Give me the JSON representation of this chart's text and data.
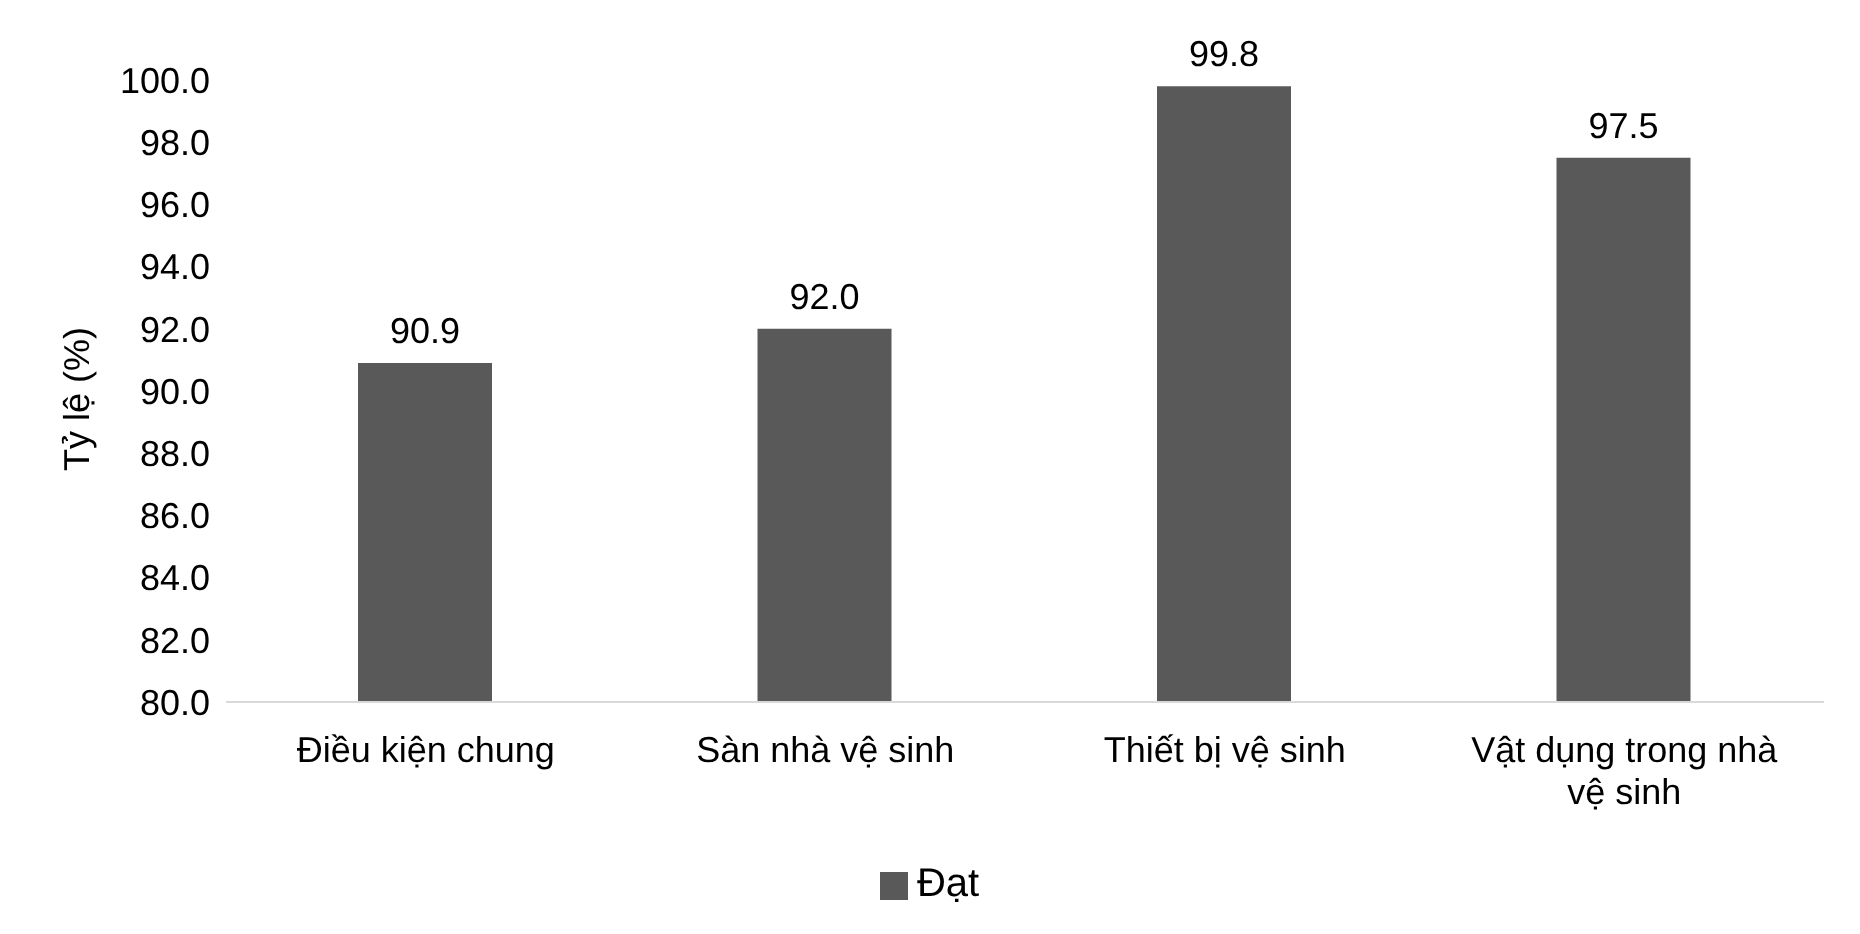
{
  "chart_data": {
    "type": "bar",
    "ylabel": "Tỷ lệ (%)",
    "categories": [
      "Điều kiện chung",
      "Sàn nhà vệ sinh",
      "Thiết bị vệ sinh",
      "Vật dụng trong nhà vệ sinh"
    ],
    "series": [
      {
        "name": "Đạt",
        "color": "#595959",
        "values": [
          90.9,
          92.0,
          99.8,
          97.5
        ],
        "value_labels": [
          "90.9",
          "92.0",
          "99.8",
          "97.5"
        ]
      }
    ],
    "ylim": [
      80,
      100
    ],
    "yticks": [
      {
        "value": 80,
        "label": "80.0"
      },
      {
        "value": 82,
        "label": "82.0"
      },
      {
        "value": 84,
        "label": "84.0"
      },
      {
        "value": 86,
        "label": "86.0"
      },
      {
        "value": 88,
        "label": "88.0"
      },
      {
        "value": 90,
        "label": "90.0"
      },
      {
        "value": 92,
        "label": "92.0"
      },
      {
        "value": 94,
        "label": "94.0"
      },
      {
        "value": 96,
        "label": "96.0"
      },
      {
        "value": 98,
        "label": "98.0"
      },
      {
        "value": 100,
        "label": "100.0"
      }
    ],
    "grid": false,
    "legend": "bottom"
  }
}
